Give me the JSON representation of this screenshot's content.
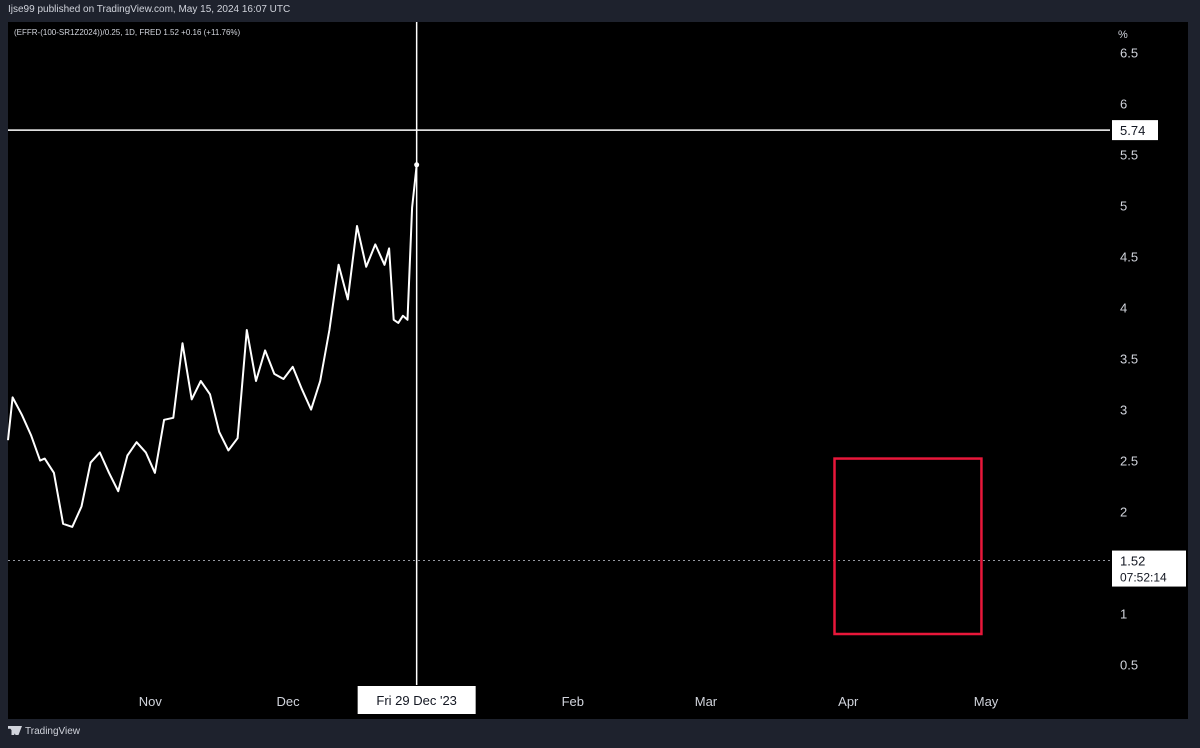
{
  "header": {
    "published": "Ijse99 published on TradingView.com, May 15, 2024 16:07 UTC"
  },
  "legend": {
    "symbol": "(EFFR-(100-SR1Z2024))/0.25, 1D, FRED  1.52  +0.16 (+11.76%)"
  },
  "footer": {
    "brand": "TradingView"
  },
  "crosshair": {
    "date_label": "Fri 29 Dec '23",
    "price_label": "5.74"
  },
  "last_price": {
    "value_label": "1.52",
    "countdown": "07:52:14"
  },
  "colors": {
    "line": "#ffffff",
    "highlight_box": "#e8173a",
    "background": "#000000"
  },
  "chart_data": {
    "type": "line",
    "title": "",
    "xlabel": "",
    "ylabel": "%",
    "ylim": [
      0.3,
      6.8
    ],
    "yticks": [
      "6.5",
      "6",
      "5.5",
      "5",
      "4.5",
      "4",
      "3.5",
      "3",
      "2.5",
      "2",
      "1.5",
      "1",
      "0.5"
    ],
    "xticks": [
      "Nov",
      "Dec",
      "Feb",
      "Mar",
      "Apr",
      "May"
    ],
    "xtick_dates": [
      "2023-11-01",
      "2023-12-01",
      "2024-02-01",
      "2024-03-01",
      "2024-04-01",
      "2024-05-01"
    ],
    "x_start": "2023-10-01",
    "x_end": "2024-05-28",
    "highlight_box": {
      "x": [
        "2024-03-29",
        "2024-04-30"
      ],
      "y": [
        0.8,
        2.52
      ]
    },
    "series": [
      {
        "values": [
          [
            "2023-10-01",
            2.7
          ],
          [
            "2023-10-02",
            3.12
          ],
          [
            "2023-10-04",
            2.95
          ],
          [
            "2023-10-06",
            2.75
          ],
          [
            "2023-10-08",
            2.5
          ],
          [
            "2023-10-09",
            2.52
          ],
          [
            "2023-10-11",
            2.38
          ],
          [
            "2023-10-13",
            1.88
          ],
          [
            "2023-10-15",
            1.85
          ],
          [
            "2023-10-17",
            2.05
          ],
          [
            "2023-10-19",
            2.48
          ],
          [
            "2023-10-21",
            2.58
          ],
          [
            "2023-10-23",
            2.38
          ],
          [
            "2023-10-25",
            2.2
          ],
          [
            "2023-10-27",
            2.55
          ],
          [
            "2023-10-29",
            2.68
          ],
          [
            "2023-10-31",
            2.58
          ],
          [
            "2023-11-02",
            2.38
          ],
          [
            "2023-11-04",
            2.9
          ],
          [
            "2023-11-06",
            2.92
          ],
          [
            "2023-11-08",
            3.65
          ],
          [
            "2023-11-10",
            3.1
          ],
          [
            "2023-11-12",
            3.28
          ],
          [
            "2023-11-14",
            3.15
          ],
          [
            "2023-11-16",
            2.78
          ],
          [
            "2023-11-18",
            2.6
          ],
          [
            "2023-11-20",
            2.72
          ],
          [
            "2023-11-22",
            3.78
          ],
          [
            "2023-11-24",
            3.28
          ],
          [
            "2023-11-26",
            3.58
          ],
          [
            "2023-11-28",
            3.35
          ],
          [
            "2023-11-30",
            3.3
          ],
          [
            "2023-12-02",
            3.42
          ],
          [
            "2023-12-04",
            3.2
          ],
          [
            "2023-12-06",
            3.0
          ],
          [
            "2023-12-08",
            3.28
          ],
          [
            "2023-12-10",
            3.78
          ],
          [
            "2023-12-12",
            4.42
          ],
          [
            "2023-12-14",
            4.08
          ],
          [
            "2023-12-16",
            4.8
          ],
          [
            "2023-12-18",
            4.4
          ],
          [
            "2023-12-20",
            4.62
          ],
          [
            "2023-12-22",
            4.42
          ],
          [
            "2023-12-23",
            4.58
          ],
          [
            "2023-12-24",
            3.88
          ],
          [
            "2023-12-25",
            3.85
          ],
          [
            "2023-12-26",
            3.92
          ],
          [
            "2023-12-27",
            3.88
          ],
          [
            "2023-12-28",
            4.98
          ],
          [
            "2023-12-29",
            5.4
          ]
        ]
      }
    ]
  }
}
